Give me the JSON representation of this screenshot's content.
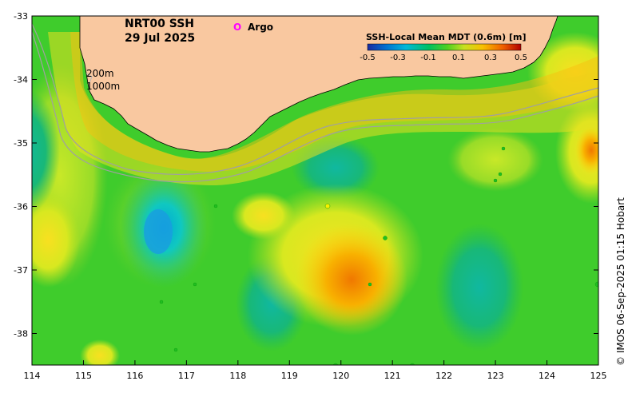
{
  "map": {
    "title_line1": "NRT00 SSH",
    "title_line2": "29 Jul 2025",
    "legend_marker_symbol": "O",
    "legend_marker_label": "Argo",
    "legend_marker_color": "#ff00ff",
    "contour_label_1": "200m",
    "contour_label_2": "1000m",
    "colorbar_title": "SSH-Local Mean MDT (0.6m) [m]",
    "colorbar_ticks": [
      "-0.5",
      "-0.3",
      "-0.1",
      "0.1",
      "0.3",
      "0.5"
    ],
    "colorbar_colors": [
      "#1a2aa0",
      "#0070d0",
      "#00b8d8",
      "#00c060",
      "#50d020",
      "#c8e020",
      "#f8c000",
      "#f06000",
      "#b00000"
    ],
    "credit": "© IMOS 06-Sep-2025 01:15 Hobart",
    "lon_ticks": [
      "114",
      "115",
      "116",
      "117",
      "118",
      "119",
      "120",
      "121",
      "122",
      "123",
      "124",
      "125"
    ],
    "lat_ticks": [
      "-33",
      "-34",
      "-35",
      "-36",
      "-37",
      "-38"
    ],
    "land_color": "#f9c8a0",
    "ocean_base_color": "#3fcc2c"
  }
}
